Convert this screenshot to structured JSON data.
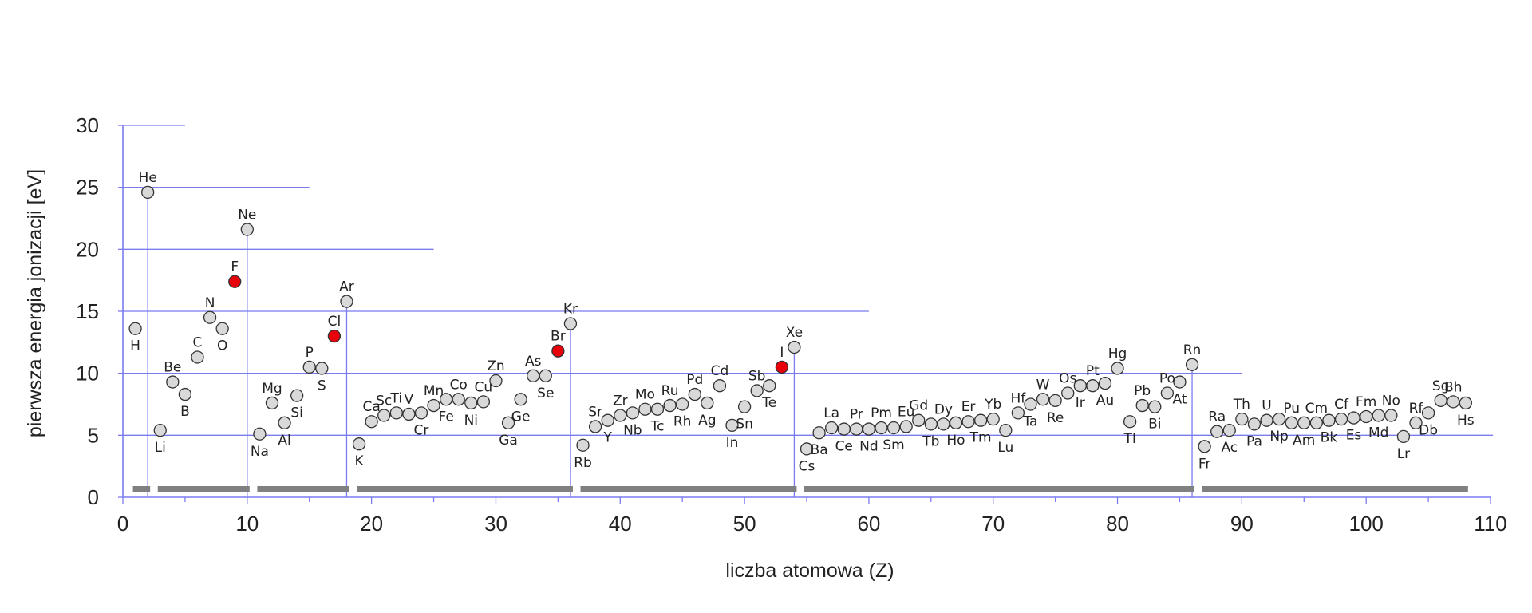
{
  "chart_data": {
    "type": "scatter",
    "xlabel": "liczba atomowa (Z)",
    "ylabel": "pierwsza energia jonizacji [eV]",
    "xlim": [
      0,
      110
    ],
    "ylim": [
      0,
      30
    ],
    "x_ticks": [
      0,
      10,
      20,
      30,
      40,
      50,
      60,
      70,
      80,
      90,
      100,
      110
    ],
    "y_ticks": [
      0,
      5,
      10,
      15,
      20,
      25,
      30
    ],
    "grid": "partial-horizontal",
    "colors": {
      "point": "#d9d9d9",
      "highlight": "#e8000b",
      "axis": "#7b7bf0",
      "period_bar": "#808080"
    },
    "highlighted": [
      "F",
      "Cl",
      "Br",
      "I"
    ],
    "period_boundaries": [
      2,
      10,
      18,
      36,
      54,
      86
    ],
    "period_bars": [
      [
        1,
        2
      ],
      [
        3,
        10
      ],
      [
        11,
        18
      ],
      [
        19,
        36
      ],
      [
        37,
        54
      ],
      [
        55,
        86
      ],
      [
        87,
        108
      ]
    ],
    "series": [
      {
        "points": [
          {
            "z": 1,
            "s": "H",
            "ie": 13.6
          },
          {
            "z": 2,
            "s": "He",
            "ie": 24.6
          },
          {
            "z": 3,
            "s": "Li",
            "ie": 5.4
          },
          {
            "z": 4,
            "s": "Be",
            "ie": 9.3
          },
          {
            "z": 5,
            "s": "B",
            "ie": 8.3
          },
          {
            "z": 6,
            "s": "C",
            "ie": 11.3
          },
          {
            "z": 7,
            "s": "N",
            "ie": 14.5
          },
          {
            "z": 8,
            "s": "O",
            "ie": 13.6
          },
          {
            "z": 9,
            "s": "F",
            "ie": 17.4
          },
          {
            "z": 10,
            "s": "Ne",
            "ie": 21.6
          },
          {
            "z": 11,
            "s": "Na",
            "ie": 5.1
          },
          {
            "z": 12,
            "s": "Mg",
            "ie": 7.6
          },
          {
            "z": 13,
            "s": "Al",
            "ie": 6.0
          },
          {
            "z": 14,
            "s": "Si",
            "ie": 8.2
          },
          {
            "z": 15,
            "s": "P",
            "ie": 10.5
          },
          {
            "z": 16,
            "s": "S",
            "ie": 10.4
          },
          {
            "z": 17,
            "s": "Cl",
            "ie": 13.0
          },
          {
            "z": 18,
            "s": "Ar",
            "ie": 15.8
          },
          {
            "z": 19,
            "s": "K",
            "ie": 4.3
          },
          {
            "z": 20,
            "s": "Ca",
            "ie": 6.1
          },
          {
            "z": 21,
            "s": "Sc",
            "ie": 6.6
          },
          {
            "z": 22,
            "s": "Ti",
            "ie": 6.8
          },
          {
            "z": 23,
            "s": "V",
            "ie": 6.7
          },
          {
            "z": 24,
            "s": "Cr",
            "ie": 6.8
          },
          {
            "z": 25,
            "s": "Mn",
            "ie": 7.4
          },
          {
            "z": 26,
            "s": "Fe",
            "ie": 7.9
          },
          {
            "z": 27,
            "s": "Co",
            "ie": 7.9
          },
          {
            "z": 28,
            "s": "Ni",
            "ie": 7.6
          },
          {
            "z": 29,
            "s": "Cu",
            "ie": 7.7
          },
          {
            "z": 30,
            "s": "Zn",
            "ie": 9.4
          },
          {
            "z": 31,
            "s": "Ga",
            "ie": 6.0
          },
          {
            "z": 32,
            "s": "Ge",
            "ie": 7.9
          },
          {
            "z": 33,
            "s": "As",
            "ie": 9.8
          },
          {
            "z": 34,
            "s": "Se",
            "ie": 9.8
          },
          {
            "z": 35,
            "s": "Br",
            "ie": 11.8
          },
          {
            "z": 36,
            "s": "Kr",
            "ie": 14.0
          },
          {
            "z": 37,
            "s": "Rb",
            "ie": 4.2
          },
          {
            "z": 38,
            "s": "Sr",
            "ie": 5.7
          },
          {
            "z": 39,
            "s": "Y",
            "ie": 6.2
          },
          {
            "z": 40,
            "s": "Zr",
            "ie": 6.6
          },
          {
            "z": 41,
            "s": "Nb",
            "ie": 6.8
          },
          {
            "z": 42,
            "s": "Mo",
            "ie": 7.1
          },
          {
            "z": 43,
            "s": "Tc",
            "ie": 7.1
          },
          {
            "z": 44,
            "s": "Ru",
            "ie": 7.4
          },
          {
            "z": 45,
            "s": "Rh",
            "ie": 7.5
          },
          {
            "z": 46,
            "s": "Pd",
            "ie": 8.3
          },
          {
            "z": 47,
            "s": "Ag",
            "ie": 7.6
          },
          {
            "z": 48,
            "s": "Cd",
            "ie": 9.0
          },
          {
            "z": 49,
            "s": "In",
            "ie": 5.8
          },
          {
            "z": 50,
            "s": "Sn",
            "ie": 7.3
          },
          {
            "z": 51,
            "s": "Sb",
            "ie": 8.6
          },
          {
            "z": 52,
            "s": "Te",
            "ie": 9.0
          },
          {
            "z": 53,
            "s": "I",
            "ie": 10.5
          },
          {
            "z": 54,
            "s": "Xe",
            "ie": 12.1
          },
          {
            "z": 55,
            "s": "Cs",
            "ie": 3.9
          },
          {
            "z": 56,
            "s": "Ba",
            "ie": 5.2
          },
          {
            "z": 57,
            "s": "La",
            "ie": 5.6
          },
          {
            "z": 58,
            "s": "Ce",
            "ie": 5.5
          },
          {
            "z": 59,
            "s": "Pr",
            "ie": 5.5
          },
          {
            "z": 60,
            "s": "Nd",
            "ie": 5.5
          },
          {
            "z": 61,
            "s": "Pm",
            "ie": 5.6
          },
          {
            "z": 62,
            "s": "Sm",
            "ie": 5.6
          },
          {
            "z": 63,
            "s": "Eu",
            "ie": 5.7
          },
          {
            "z": 64,
            "s": "Gd",
            "ie": 6.2
          },
          {
            "z": 65,
            "s": "Tb",
            "ie": 5.9
          },
          {
            "z": 66,
            "s": "Dy",
            "ie": 5.9
          },
          {
            "z": 67,
            "s": "Ho",
            "ie": 6.0
          },
          {
            "z": 68,
            "s": "Er",
            "ie": 6.1
          },
          {
            "z": 69,
            "s": "Tm",
            "ie": 6.2
          },
          {
            "z": 70,
            "s": "Yb",
            "ie": 6.3
          },
          {
            "z": 71,
            "s": "Lu",
            "ie": 5.4
          },
          {
            "z": 72,
            "s": "Hf",
            "ie": 6.8
          },
          {
            "z": 73,
            "s": "Ta",
            "ie": 7.5
          },
          {
            "z": 74,
            "s": "W",
            "ie": 7.9
          },
          {
            "z": 75,
            "s": "Re",
            "ie": 7.8
          },
          {
            "z": 76,
            "s": "Os",
            "ie": 8.4
          },
          {
            "z": 77,
            "s": "Ir",
            "ie": 9.0
          },
          {
            "z": 78,
            "s": "Pt",
            "ie": 9.0
          },
          {
            "z": 79,
            "s": "Au",
            "ie": 9.2
          },
          {
            "z": 80,
            "s": "Hg",
            "ie": 10.4
          },
          {
            "z": 81,
            "s": "Tl",
            "ie": 6.1
          },
          {
            "z": 82,
            "s": "Pb",
            "ie": 7.4
          },
          {
            "z": 83,
            "s": "Bi",
            "ie": 7.3
          },
          {
            "z": 84,
            "s": "Po",
            "ie": 8.4
          },
          {
            "z": 85,
            "s": "At",
            "ie": 9.3
          },
          {
            "z": 86,
            "s": "Rn",
            "ie": 10.7
          },
          {
            "z": 87,
            "s": "Fr",
            "ie": 4.1
          },
          {
            "z": 88,
            "s": "Ra",
            "ie": 5.3
          },
          {
            "z": 89,
            "s": "Ac",
            "ie": 5.4
          },
          {
            "z": 90,
            "s": "Th",
            "ie": 6.3
          },
          {
            "z": 91,
            "s": "Pa",
            "ie": 5.9
          },
          {
            "z": 92,
            "s": "U",
            "ie": 6.2
          },
          {
            "z": 93,
            "s": "Np",
            "ie": 6.3
          },
          {
            "z": 94,
            "s": "Pu",
            "ie": 6.0
          },
          {
            "z": 95,
            "s": "Am",
            "ie": 6.0
          },
          {
            "z": 96,
            "s": "Cm",
            "ie": 6.0
          },
          {
            "z": 97,
            "s": "Bk",
            "ie": 6.2
          },
          {
            "z": 98,
            "s": "Cf",
            "ie": 6.3
          },
          {
            "z": 99,
            "s": "Es",
            "ie": 6.4
          },
          {
            "z": 100,
            "s": "Fm",
            "ie": 6.5
          },
          {
            "z": 101,
            "s": "Md",
            "ie": 6.6
          },
          {
            "z": 102,
            "s": "No",
            "ie": 6.6
          },
          {
            "z": 103,
            "s": "Lr",
            "ie": 4.9
          },
          {
            "z": 104,
            "s": "Rf",
            "ie": 6.0
          },
          {
            "z": 105,
            "s": "Db",
            "ie": 6.8
          },
          {
            "z": 106,
            "s": "Sg",
            "ie": 7.8
          },
          {
            "z": 107,
            "s": "Bh",
            "ie": 7.7
          },
          {
            "z": 108,
            "s": "Hs",
            "ie": 7.6
          }
        ]
      }
    ]
  }
}
